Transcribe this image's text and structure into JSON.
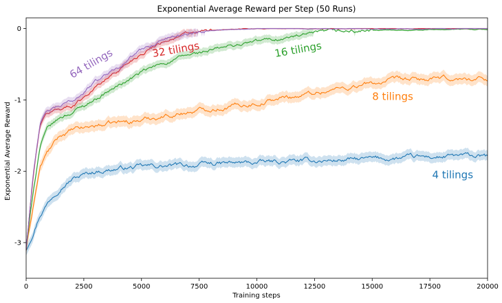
{
  "chart_data": {
    "type": "line",
    "title": "Exponential Average Reward per Step (50 Runs)",
    "xlabel": "Training steps",
    "ylabel": "Exponential Average Reward",
    "xlim": [
      0,
      20000
    ],
    "ylim": [
      -3.5,
      0.15
    ],
    "x_ticks": [
      0,
      2500,
      5000,
      7500,
      10000,
      12500,
      15000,
      17500,
      20000
    ],
    "x_tick_labels": [
      "0",
      "2500",
      "5000",
      "7500",
      "10000",
      "12500",
      "15000",
      "17500",
      "20000"
    ],
    "y_ticks": [
      0,
      -1,
      -2,
      -3
    ],
    "y_tick_labels": [
      "0",
      "-1",
      "-2",
      "-3"
    ],
    "grid": false,
    "legend": "none; series named by inline annotations",
    "series": [
      {
        "name": "4 tilings",
        "color": "#1f77b4",
        "annotation_at": [
          17600,
          -2.1
        ],
        "annotation_rotation": 0,
        "x": [
          0,
          300,
          600,
          900,
          1200,
          1500,
          2000,
          2500,
          3000,
          4000,
          5000,
          6000,
          7000,
          8000,
          9000,
          10000,
          11000,
          12000,
          13000,
          14000,
          15000,
          16000,
          17000,
          18000,
          19000,
          20000
        ],
        "y": [
          -3.1,
          -2.85,
          -2.6,
          -2.45,
          -2.32,
          -2.2,
          -2.1,
          -2.05,
          -2.0,
          -1.96,
          -1.94,
          -1.93,
          -1.92,
          -1.9,
          -1.89,
          -1.88,
          -1.87,
          -1.86,
          -1.85,
          -1.84,
          -1.83,
          -1.82,
          -1.81,
          -1.8,
          -1.79,
          -1.8
        ]
      },
      {
        "name": "8 tilings",
        "color": "#ff7f0e",
        "annotation_at": [
          15000,
          -1.0
        ],
        "annotation_rotation": 0,
        "x": [
          0,
          300,
          600,
          900,
          1200,
          1500,
          2000,
          2500,
          3000,
          4000,
          5000,
          6000,
          7000,
          8000,
          9000,
          10000,
          11000,
          12000,
          13000,
          14000,
          15000,
          16000,
          17000,
          18000,
          19000,
          20000
        ],
        "y": [
          -3.1,
          -2.5,
          -1.95,
          -1.75,
          -1.62,
          -1.5,
          -1.43,
          -1.4,
          -1.36,
          -1.32,
          -1.28,
          -1.22,
          -1.17,
          -1.12,
          -1.08,
          -1.04,
          -0.98,
          -0.93,
          -0.87,
          -0.82,
          -0.77,
          -0.73,
          -0.72,
          -0.71,
          -0.71,
          -0.7
        ]
      },
      {
        "name": "16 tilings",
        "color": "#2ca02c",
        "annotation_at": [
          10800,
          -0.4
        ],
        "annotation_rotation": -10,
        "x": [
          0,
          300,
          600,
          900,
          1200,
          1500,
          2000,
          2500,
          3000,
          4000,
          5000,
          6000,
          7000,
          8000,
          9000,
          10000,
          11000,
          12000,
          13000,
          14000,
          15000,
          16000,
          17000,
          18000,
          19000,
          20000
        ],
        "y": [
          -3.1,
          -2.3,
          -1.65,
          -1.42,
          -1.33,
          -1.25,
          -1.17,
          -1.08,
          -0.98,
          -0.8,
          -0.62,
          -0.48,
          -0.38,
          -0.31,
          -0.24,
          -0.18,
          -0.14,
          -0.1,
          -0.06,
          -0.04,
          -0.03,
          -0.02,
          -0.02,
          -0.01,
          -0.01,
          -0.01
        ]
      },
      {
        "name": "32 tilings",
        "color": "#d62728",
        "annotation_at": [
          5500,
          -0.4
        ],
        "annotation_rotation": -10,
        "x": [
          0,
          300,
          600,
          900,
          1200,
          1500,
          2000,
          2500,
          3000,
          4000,
          5000,
          6000,
          7000,
          8000,
          9000,
          10000,
          11000,
          12000,
          20000
        ],
        "y": [
          -3.1,
          -2.1,
          -1.35,
          -1.2,
          -1.15,
          -1.12,
          -1.08,
          -0.95,
          -0.82,
          -0.58,
          -0.34,
          -0.16,
          -0.08,
          -0.03,
          -0.01,
          0.0,
          0.0,
          0.0,
          0.0
        ]
      },
      {
        "name": "64 tilings",
        "color": "#9467bd",
        "annotation_at": [
          2000,
          -0.7
        ],
        "annotation_rotation": -30,
        "x": [
          0,
          300,
          600,
          900,
          1200,
          1500,
          2000,
          2500,
          3000,
          4000,
          5000,
          6000,
          7000,
          8000,
          9000,
          10000,
          11000,
          12000,
          20000
        ],
        "y": [
          -3.1,
          -2.05,
          -1.32,
          -1.18,
          -1.13,
          -1.09,
          -1.02,
          -0.88,
          -0.75,
          -0.52,
          -0.3,
          -0.14,
          -0.06,
          -0.02,
          -0.01,
          0.0,
          0.0,
          0.0,
          0.0
        ]
      }
    ]
  }
}
